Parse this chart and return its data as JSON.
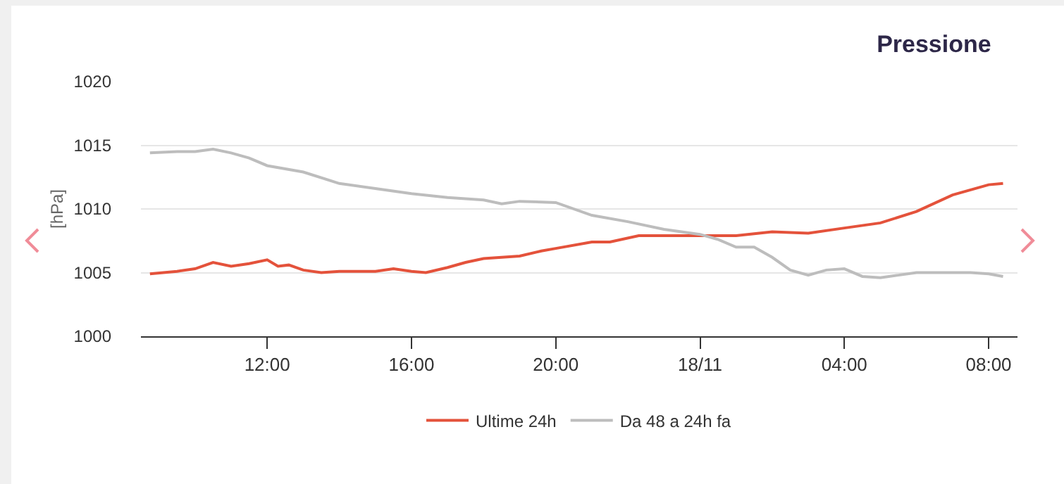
{
  "chart_data": {
    "type": "line",
    "title": "Pressione",
    "ylabel": "[hPa]",
    "xlim": [
      "--11-17T08:30",
      "--11-18T08:48"
    ],
    "xticks": [
      {
        "value": "--11-17T12:00",
        "label": "12:00"
      },
      {
        "value": "--11-17T16:00",
        "label": "16:00"
      },
      {
        "value": "--11-17T20:00",
        "label": "20:00"
      },
      {
        "value": "--11-18T00:00",
        "label": "18/11"
      },
      {
        "value": "--11-18T04:00",
        "label": "04:00"
      },
      {
        "value": "--11-18T08:00",
        "label": "08:00"
      }
    ],
    "ylim": [
      1000,
      1020
    ],
    "yticks": [
      1000,
      1005,
      1010,
      1015,
      1020
    ],
    "grid": "y",
    "legend": "bottom",
    "marker": "none",
    "line_style": "solid",
    "series": [
      {
        "name": "Ultime 24h",
        "color": "#e4523b",
        "x": [
          "--11-17T08:45",
          "--11-17T09:30",
          "--11-17T10:00",
          "--11-17T10:30",
          "--11-17T11:00",
          "--11-17T11:30",
          "--11-17T12:00",
          "--11-17T12:18",
          "--11-17T12:36",
          "--11-17T13:00",
          "--11-17T13:30",
          "--11-17T14:00",
          "--11-17T15:00",
          "--11-17T15:30",
          "--11-17T16:00",
          "--11-17T16:24",
          "--11-17T17:00",
          "--11-17T17:30",
          "--11-17T18:00",
          "--11-17T19:00",
          "--11-17T19:36",
          "--11-17T20:00",
          "--11-17T21:00",
          "--11-17T21:30",
          "--11-17T22:18",
          "--11-17T23:00",
          "--11-18T00:00",
          "--11-18T01:00",
          "--11-18T02:00",
          "--11-18T03:00",
          "--11-18T04:00",
          "--11-18T05:00",
          "--11-18T06:00",
          "--11-18T07:00",
          "--11-18T08:00",
          "--11-18T08:24"
        ],
        "values": [
          1004.9,
          1005.1,
          1005.3,
          1005.8,
          1005.5,
          1005.7,
          1006.0,
          1005.5,
          1005.6,
          1005.2,
          1005.0,
          1005.1,
          1005.1,
          1005.3,
          1005.1,
          1005.0,
          1005.4,
          1005.8,
          1006.1,
          1006.3,
          1006.7,
          1006.9,
          1007.4,
          1007.4,
          1007.9,
          1007.9,
          1007.9,
          1007.9,
          1008.2,
          1008.1,
          1008.5,
          1008.9,
          1009.8,
          1011.1,
          1011.9,
          1012.0
        ]
      },
      {
        "name": "Da 48 a 24h fa",
        "color": "#bdbdbd",
        "x": [
          "--11-17T08:45",
          "--11-17T09:30",
          "--11-17T10:00",
          "--11-17T10:30",
          "--11-17T11:00",
          "--11-17T11:30",
          "--11-17T12:00",
          "--11-17T13:00",
          "--11-17T14:00",
          "--11-17T15:00",
          "--11-17T16:00",
          "--11-17T17:00",
          "--11-17T18:00",
          "--11-17T18:30",
          "--11-17T19:00",
          "--11-17T20:00",
          "--11-17T21:00",
          "--11-17T22:00",
          "--11-17T23:00",
          "--11-18T00:00",
          "--11-18T00:30",
          "--11-18T01:00",
          "--11-18T01:30",
          "--11-18T02:00",
          "--11-18T02:30",
          "--11-18T03:00",
          "--11-18T03:30",
          "--11-18T04:00",
          "--11-18T04:30",
          "--11-18T05:00",
          "--11-18T05:30",
          "--11-18T06:00",
          "--11-18T07:00",
          "--11-18T07:30",
          "--11-18T08:00",
          "--11-18T08:24"
        ],
        "values": [
          1014.4,
          1014.5,
          1014.5,
          1014.7,
          1014.4,
          1014.0,
          1013.4,
          1012.9,
          1012.0,
          1011.6,
          1011.2,
          1010.9,
          1010.7,
          1010.4,
          1010.6,
          1010.5,
          1009.5,
          1009.0,
          1008.4,
          1008.0,
          1007.6,
          1007.0,
          1007.0,
          1006.2,
          1005.2,
          1004.8,
          1005.2,
          1005.3,
          1004.7,
          1004.6,
          1004.8,
          1005.0,
          1005.0,
          1005.0,
          1004.9,
          1004.7
        ]
      }
    ]
  }
}
